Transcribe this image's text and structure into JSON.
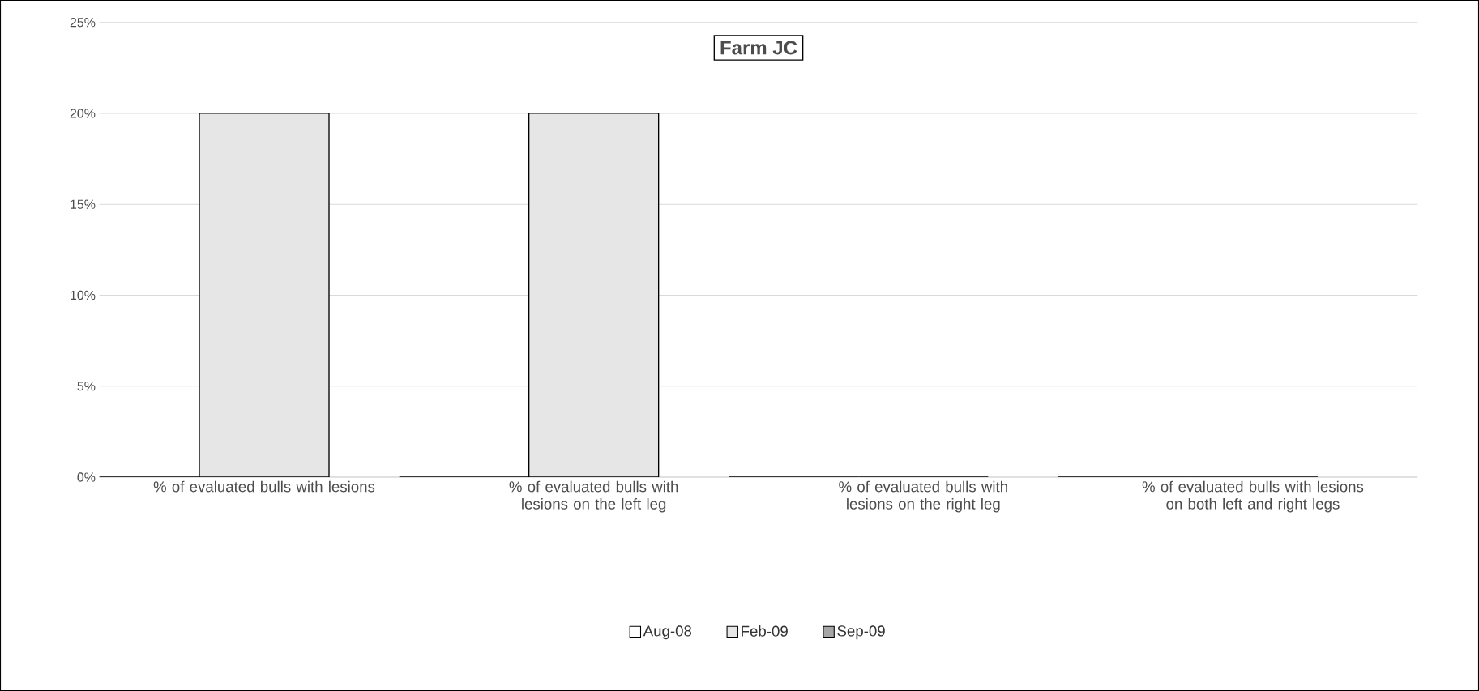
{
  "chart_data": {
    "type": "bar",
    "title": "Farm JC",
    "categories": [
      "% of evaluated bulls with lesions",
      "% of evaluated bulls with lesions on the left leg",
      "% of evaluated bulls with lesions on the right leg",
      "% of evaluated bulls with lesions on both left and right legs"
    ],
    "series": [
      {
        "name": "Aug-08",
        "color": "#ffffff",
        "values": [
          0,
          0,
          0,
          0
        ]
      },
      {
        "name": "Feb-09",
        "color": "#e6e6e6",
        "values": [
          20,
          20,
          0,
          0
        ]
      },
      {
        "name": "Sep-09",
        "color": "#a6a6a6",
        "values": [
          0,
          0,
          0,
          0
        ]
      }
    ],
    "ylim": [
      0,
      25
    ],
    "yticks": [
      {
        "value": 0,
        "label": "0%"
      },
      {
        "value": 5,
        "label": "5%"
      },
      {
        "value": 10,
        "label": "10%"
      },
      {
        "value": 15,
        "label": "15%"
      },
      {
        "value": 20,
        "label": "20%"
      },
      {
        "value": 25,
        "label": "25%"
      }
    ],
    "grid": "y",
    "legend": "bottom"
  }
}
